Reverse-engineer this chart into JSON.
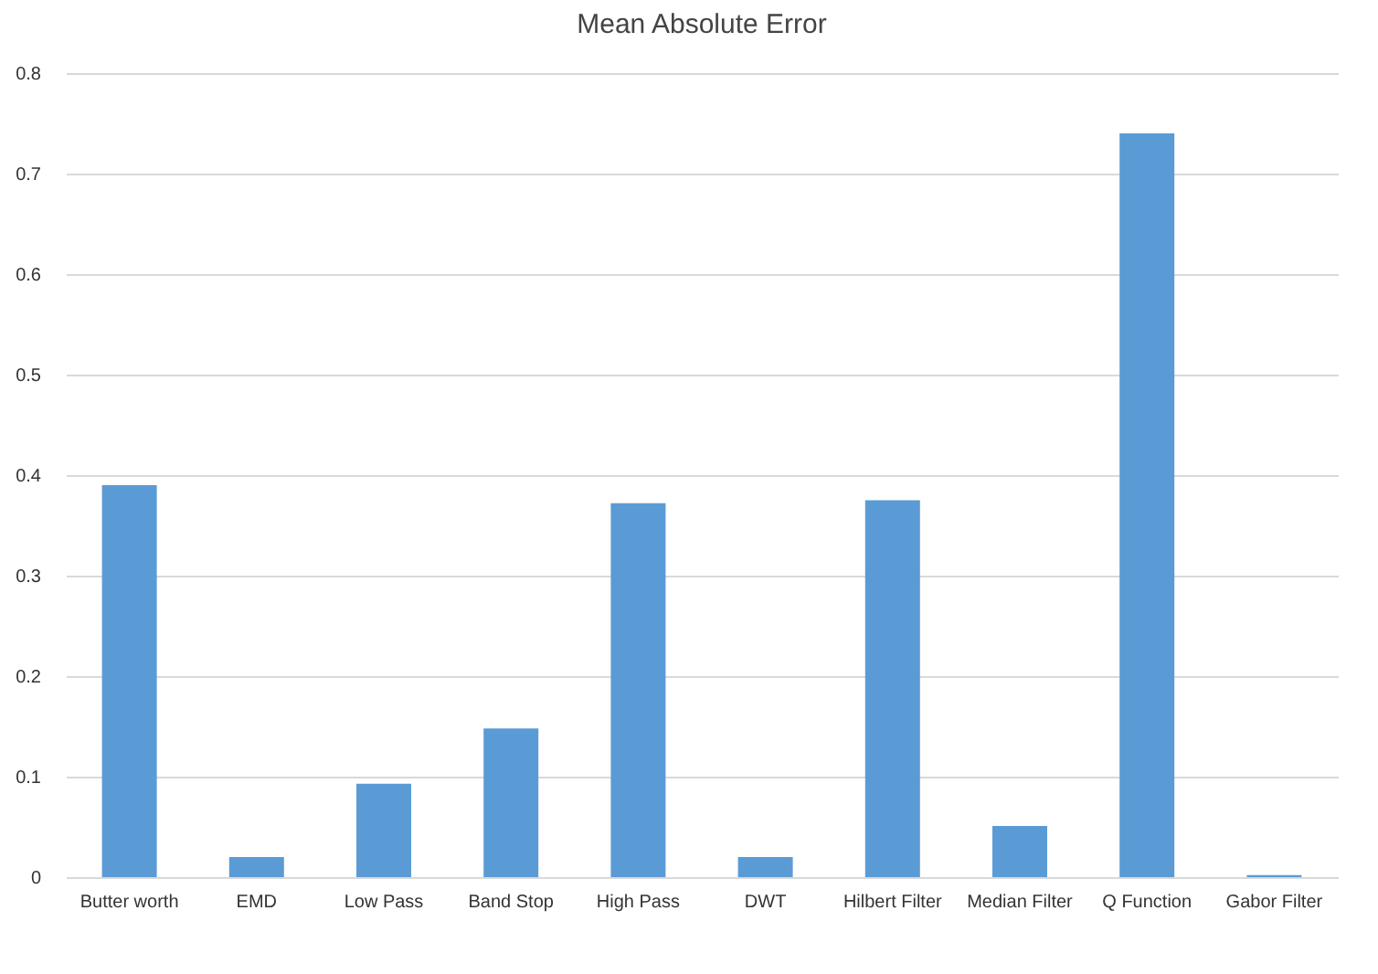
{
  "chart_data": {
    "type": "bar",
    "title": "Mean Absolute Error",
    "categories": [
      "Butter worth",
      "EMD",
      "Low Pass",
      "Band Stop",
      "High Pass",
      "DWT",
      "Hilbert Filter",
      "Median Filter",
      "Q Function",
      "Gabor Filter"
    ],
    "values": [
      0.39,
      0.02,
      0.093,
      0.148,
      0.372,
      0.02,
      0.375,
      0.051,
      0.74,
      0.002
    ],
    "color": "#5b9bd5",
    "ylim": [
      0,
      0.8
    ],
    "yticks": [
      0,
      0.1,
      0.2,
      0.3,
      0.4,
      0.5,
      0.6,
      0.7,
      0.8
    ],
    "grid": "y"
  }
}
